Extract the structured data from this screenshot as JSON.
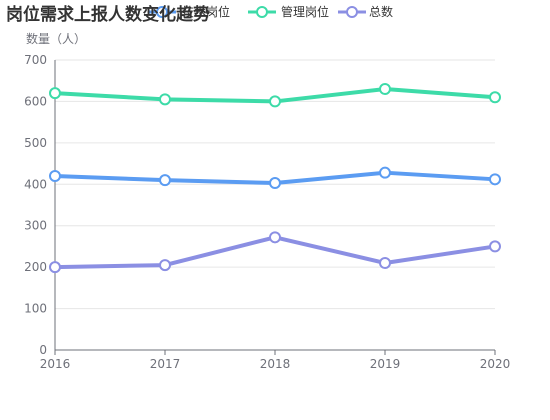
{
  "chart_data": {
    "type": "line",
    "title": "岗位需求上报人数变化趋势",
    "y_unit_label": "数量（人）",
    "categories": [
      "2016",
      "2017",
      "2018",
      "2019",
      "2020"
    ],
    "ylim": [
      0,
      700
    ],
    "yticks": [
      0,
      100,
      200,
      300,
      400,
      500,
      600,
      700
    ],
    "grid": true,
    "legend_position": "top",
    "series": [
      {
        "name": "技术岗位",
        "color": "#5b9cf2",
        "values": [
          420,
          410,
          403,
          428,
          412
        ]
      },
      {
        "name": "管理岗位",
        "color": "#3ddba8",
        "values": [
          620,
          605,
          600,
          630,
          610
        ]
      },
      {
        "name": "总数",
        "color": "#8b8fe3",
        "values": [
          200,
          205,
          272,
          210,
          250
        ]
      }
    ]
  }
}
